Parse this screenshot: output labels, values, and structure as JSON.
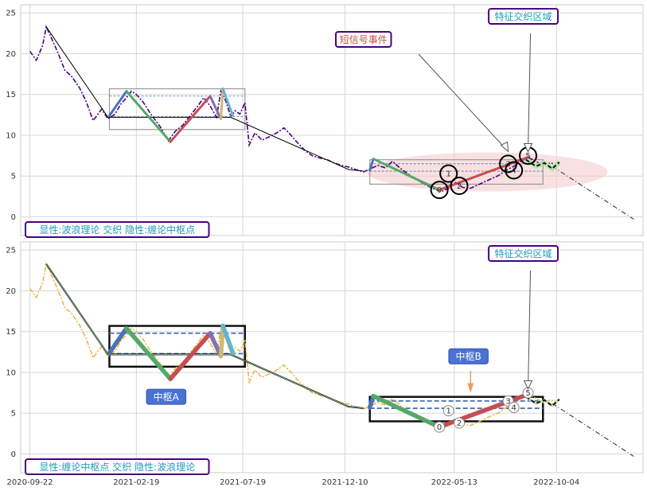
{
  "chart_data": {
    "type": "line",
    "x_ticks": [
      "2020-09-22",
      "2021-02-19",
      "2021-07-19",
      "2021-12-10",
      "2022-05-13",
      "2022-10-04"
    ],
    "y_ticks": [
      0,
      5,
      10,
      15,
      20,
      25
    ],
    "ylim": [
      -2.3,
      26
    ],
    "xlim": [
      "2020-09-09",
      "2023-02-03"
    ],
    "grid": true,
    "colors": {
      "top_price": "#4b0082",
      "bottom_price": "#e8b84a",
      "trend": "#000000",
      "wave_up_blue": "#4a72b8",
      "wave_green": "#55a868",
      "wave_red": "#c44e52",
      "wave_purple": "#8172b2",
      "wave_tan": "#ccb974",
      "wave_cyan": "#64b5cd",
      "annot_text": "#1f9bb8",
      "annot_border": "#4b0082",
      "signal_red": "#c44e52",
      "zone_fill": "#f4c6c8",
      "label_blue": "#4a72d4"
    },
    "price_points": [
      [
        "2020-09-22",
        20.3
      ],
      [
        "2020-10-01",
        19.2
      ],
      [
        "2020-10-10",
        21.0
      ],
      [
        "2020-10-15",
        23.3
      ],
      [
        "2020-10-22",
        22.0
      ],
      [
        "2020-11-01",
        20.0
      ],
      [
        "2020-11-10",
        18.0
      ],
      [
        "2020-11-20",
        17.2
      ],
      [
        "2020-12-01",
        15.8
      ],
      [
        "2020-12-10",
        14.2
      ],
      [
        "2020-12-20",
        11.8
      ],
      [
        "2021-01-01",
        13.2
      ],
      [
        "2021-01-10",
        12.0
      ],
      [
        "2021-01-20",
        12.6
      ],
      [
        "2021-01-28",
        13.8
      ],
      [
        "2021-02-05",
        14.6
      ],
      [
        "2021-02-12",
        15.4
      ],
      [
        "2021-02-19",
        15.0
      ],
      [
        "2021-03-01",
        14.0
      ],
      [
        "2021-03-12",
        12.5
      ],
      [
        "2021-03-25",
        11.0
      ],
      [
        "2021-04-05",
        9.3
      ],
      [
        "2021-04-15",
        10.5
      ],
      [
        "2021-04-25",
        11.2
      ],
      [
        "2021-05-05",
        12.3
      ],
      [
        "2021-05-15",
        13.4
      ],
      [
        "2021-05-25",
        14.6
      ],
      [
        "2021-06-03",
        13.6
      ],
      [
        "2021-06-12",
        12.2
      ],
      [
        "2021-06-18",
        15.4
      ],
      [
        "2021-06-25",
        14.2
      ],
      [
        "2021-07-02",
        12.3
      ],
      [
        "2021-07-08",
        13.0
      ],
      [
        "2021-07-15",
        12.6
      ],
      [
        "2021-07-22",
        14.0
      ],
      [
        "2021-07-28",
        8.8
      ],
      [
        "2021-08-05",
        10.3
      ],
      [
        "2021-08-15",
        9.4
      ],
      [
        "2021-08-25",
        9.8
      ],
      [
        "2021-09-05",
        10.3
      ],
      [
        "2021-09-15",
        10.9
      ],
      [
        "2021-09-25",
        10.0
      ],
      [
        "2021-10-05",
        9.0
      ],
      [
        "2021-10-15",
        8.1
      ],
      [
        "2021-10-25",
        7.5
      ],
      [
        "2021-11-05",
        7.2
      ],
      [
        "2021-11-15",
        7.0
      ],
      [
        "2021-11-25",
        6.6
      ],
      [
        "2021-12-05",
        6.3
      ],
      [
        "2021-12-15",
        6.1
      ],
      [
        "2021-12-25",
        5.8
      ],
      [
        "2022-01-05",
        5.5
      ],
      [
        "2022-01-15",
        5.9
      ],
      [
        "2022-01-25",
        6.3
      ],
      [
        "2022-02-05",
        6.0
      ],
      [
        "2022-02-15",
        6.8
      ],
      [
        "2022-02-25",
        6.0
      ],
      [
        "2022-03-08",
        5.3
      ],
      [
        "2022-03-20",
        4.6
      ],
      [
        "2022-04-01",
        4.0
      ],
      [
        "2022-04-15",
        3.4
      ],
      [
        "2022-04-25",
        3.1
      ],
      [
        "2022-05-05",
        3.5
      ],
      [
        "2022-05-15",
        4.2
      ],
      [
        "2022-05-25",
        3.6
      ],
      [
        "2022-06-05",
        3.5
      ],
      [
        "2022-06-15",
        3.9
      ],
      [
        "2022-06-25",
        4.3
      ],
      [
        "2022-07-05",
        4.7
      ],
      [
        "2022-07-15",
        5.1
      ],
      [
        "2022-07-25",
        5.7
      ],
      [
        "2022-08-05",
        6.2
      ],
      [
        "2022-08-15",
        6.8
      ],
      [
        "2022-08-25",
        7.3
      ],
      [
        "2022-09-05",
        6.8
      ],
      [
        "2022-09-15",
        6.3
      ],
      [
        "2022-09-25",
        6.6
      ],
      [
        "2022-10-05",
        6.4
      ]
    ],
    "trend_points": [
      [
        "2020-10-15",
        23.3
      ],
      [
        "2021-01-10",
        12.2
      ],
      [
        "2021-07-02",
        12.2
      ],
      [
        "2021-12-15",
        5.8
      ],
      [
        "2022-01-05",
        5.6
      ]
    ],
    "projection_points": [
      [
        "2022-09-28",
        6.2
      ],
      [
        "2023-01-21",
        -0.3
      ]
    ],
    "projection_dashes": [
      [
        "2022-08-22",
        7.0
      ],
      [
        "2022-09-05",
        6.2
      ],
      [
        "2022-09-17",
        6.6
      ],
      [
        "2022-09-28",
        5.9
      ],
      [
        "2022-10-08",
        6.7
      ]
    ],
    "waves_top": [
      {
        "color": "#4a72b8",
        "points": [
          [
            "2021-01-12",
            12.4
          ],
          [
            "2021-02-05",
            15.4
          ]
        ]
      },
      {
        "color": "#55a868",
        "points": [
          [
            "2021-02-05",
            15.4
          ],
          [
            "2021-04-08",
            9.2
          ]
        ]
      },
      {
        "color": "#c44e52",
        "points": [
          [
            "2021-04-08",
            9.2
          ],
          [
            "2021-06-03",
            14.8
          ]
        ]
      },
      {
        "color": "#8172b2",
        "points": [
          [
            "2021-06-03",
            14.8
          ],
          [
            "2021-06-18",
            12.0
          ]
        ]
      },
      {
        "color": "#ccb974",
        "points": [
          [
            "2021-06-18",
            12.0
          ],
          [
            "2021-06-21",
            15.7
          ]
        ]
      },
      {
        "color": "#64b5cd",
        "points": [
          [
            "2021-06-21",
            15.7
          ],
          [
            "2021-07-05",
            12.4
          ]
        ]
      },
      {
        "color": "#4a72b8",
        "points": [
          [
            "2022-01-14",
            5.7
          ],
          [
            "2022-01-19",
            7.1
          ]
        ]
      },
      {
        "color": "#55a868",
        "points": [
          [
            "2022-01-19",
            7.1
          ],
          [
            "2022-04-22",
            3.3
          ]
        ]
      },
      {
        "color": "#c44e52",
        "points": [
          [
            "2022-04-22",
            3.3
          ],
          [
            "2022-08-25",
            7.3
          ]
        ]
      }
    ],
    "waves_bottom": [
      {
        "color": "#4a72b8",
        "points": [
          [
            "2021-01-12",
            12.4
          ],
          [
            "2021-02-05",
            15.4
          ]
        ]
      },
      {
        "color": "#55a868",
        "points": [
          [
            "2021-02-05",
            15.4
          ],
          [
            "2021-04-08",
            9.2
          ]
        ]
      },
      {
        "color": "#c44e52",
        "points": [
          [
            "2021-04-08",
            9.2
          ],
          [
            "2021-06-03",
            14.8
          ]
        ]
      },
      {
        "color": "#8172b2",
        "points": [
          [
            "2021-06-03",
            14.8
          ],
          [
            "2021-06-18",
            12.0
          ]
        ]
      },
      {
        "color": "#ccb974",
        "points": [
          [
            "2021-06-18",
            12.0
          ],
          [
            "2021-06-21",
            15.7
          ]
        ]
      },
      {
        "color": "#64b5cd",
        "points": [
          [
            "2021-06-21",
            15.7
          ],
          [
            "2021-07-05",
            12.4
          ]
        ]
      },
      {
        "color": "#4a72b8",
        "points": [
          [
            "2022-01-14",
            5.7
          ],
          [
            "2022-01-19",
            7.1
          ]
        ]
      },
      {
        "color": "#55a868",
        "points": [
          [
            "2022-01-19",
            7.1
          ],
          [
            "2022-04-22",
            3.3
          ]
        ]
      },
      {
        "color": "#c44e52",
        "points": [
          [
            "2022-04-22",
            3.3
          ],
          [
            "2022-08-25",
            7.3
          ]
        ]
      }
    ],
    "zhongshu": [
      {
        "x1": "2021-01-12",
        "x2": "2021-07-22",
        "y1": 10.7,
        "y2": 15.7,
        "zg": 14.8,
        "zd": 12.3
      },
      {
        "x1": "2022-01-14",
        "x2": "2022-09-15",
        "y1": 4.0,
        "y2": 7.0,
        "zg": 6.5,
        "zd": 5.6
      }
    ],
    "points_top": [
      {
        "label": "0",
        "x": "2022-04-22",
        "y": 3.3
      },
      {
        "label": "1",
        "x": "2022-05-05",
        "y": 5.3
      },
      {
        "label": "2",
        "x": "2022-05-20",
        "y": 3.8
      },
      {
        "label": "3",
        "x": "2022-07-28",
        "y": 6.5
      },
      {
        "label": "4",
        "x": "2022-08-05",
        "y": 5.7
      },
      {
        "label": "5",
        "x": "2022-08-25",
        "y": 7.5
      }
    ],
    "points_bottom": [
      {
        "label": "0",
        "x": "2022-04-22",
        "y": 3.3
      },
      {
        "label": "1",
        "x": "2022-05-05",
        "y": 5.3
      },
      {
        "label": "2",
        "x": "2022-05-20",
        "y": 3.8
      },
      {
        "label": "3",
        "x": "2022-07-28",
        "y": 6.5
      },
      {
        "label": "4",
        "x": "2022-08-05",
        "y": 5.7
      },
      {
        "label": "5",
        "x": "2022-08-25",
        "y": 7.5
      }
    ],
    "signal_zone": {
      "x1": "2022-01-10",
      "x2": "2022-12-15",
      "y": 5.5,
      "height": 4.8
    },
    "annotations": {
      "top_region": "特征交织区域",
      "top_signal": "短信号事件",
      "top_caption": "显性:波浪理论 交织 隐性:缠论中枢点",
      "bottom_region": "特征交织区域",
      "bottom_caption": "显性:缠论中枢点 交织 隐性:波浪理论",
      "label_a": "中枢A",
      "label_b": "中枢B"
    }
  }
}
